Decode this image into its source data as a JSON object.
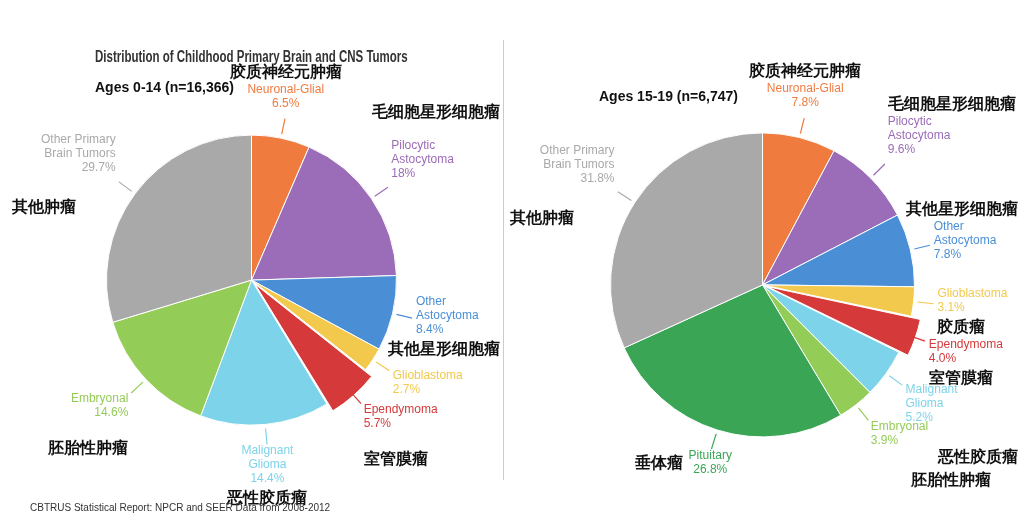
{
  "chart_data": [
    {
      "type": "pie",
      "title": "Distribution of Childhood Primary Brain and CNS Tumors",
      "subtitle": "Ages 0-14 (n=16,366)",
      "categories": [
        "Neuronal-Glial",
        "Pilocytic Astocytoma",
        "Other Astocytoma",
        "Glioblastoma",
        "Ependymoma",
        "Malignant Glioma",
        "Embryonal",
        "Other Primary Brain Tumors"
      ],
      "values": [
        6.5,
        18,
        8.4,
        2.7,
        5.7,
        14.4,
        14.6,
        29.7
      ],
      "value_labels": [
        "6.5%",
        "18%",
        "8.4%",
        "2.7%",
        "5.7%",
        "14.4%",
        "14.6%",
        "29.7%"
      ],
      "colors": [
        "#f07b3f",
        "#9b6cb8",
        "#4a8fd6",
        "#f2c94c",
        "#d6393a",
        "#7dd3ea",
        "#94cc58",
        "#a9a9a9"
      ],
      "annotations": [
        {
          "text": "胶质神经元肿瘤",
          "x": "Neuronal-Glial"
        },
        {
          "text": "毛细胞星形细胞瘤",
          "x": "Pilocytic Astocytoma"
        },
        {
          "text": "其他星形细胞瘤",
          "x": "Other Astocytoma"
        },
        {
          "text": "室管膜瘤",
          "x": "Ependymoma"
        },
        {
          "text": "恶性胶质瘤",
          "x": "Malignant Glioma"
        },
        {
          "text": "胚胎性肿瘤",
          "x": "Embryonal"
        },
        {
          "text": "其他肿瘤",
          "x": "Other Primary Brain Tumors"
        },
        "CBTRUS Statistical Report: NPCR and SEER Data from 2008-2012"
      ],
      "legend": false
    },
    {
      "type": "pie",
      "subtitle": "Ages 15-19 (n=6,747)",
      "categories": [
        "Neuronal-Glial",
        "Pilocytic Astocytoma",
        "Other Astocytoma",
        "Glioblastoma",
        "Ependymoma",
        "Malignant Glioma",
        "Embryonal",
        "Pituitary",
        "Other Primary Brain Tumors"
      ],
      "values": [
        7.8,
        9.6,
        7.8,
        3.1,
        4.0,
        5.2,
        3.9,
        26.8,
        31.8
      ],
      "value_labels": [
        "7.8%",
        "9.6%",
        "7.8%",
        "3.1%",
        "4.0%",
        "5.2%",
        "3.9%",
        "26.8%",
        "31.8%"
      ],
      "colors": [
        "#f07b3f",
        "#9b6cb8",
        "#4a8fd6",
        "#f2c94c",
        "#d6393a",
        "#7dd3ea",
        "#94cc58",
        "#3aa655",
        "#a9a9a9"
      ],
      "annotations": [
        {
          "text": "胶质神经元肿瘤",
          "x": "Neuronal-Glial"
        },
        {
          "text": "毛细胞星形细胞瘤",
          "x": "Pilocytic Astocytoma"
        },
        {
          "text": "其他星形细胞瘤",
          "x": "Other Astocytoma"
        },
        {
          "text": "胶质瘤",
          "x": "Glioblastoma"
        },
        {
          "text": "室管膜瘤",
          "x": "Ependymoma"
        },
        {
          "text": "恶性胶质瘤",
          "x": "Malignant Glioma"
        },
        {
          "text": "胚胎性肿瘤",
          "x": "Embryonal"
        },
        {
          "text": "垂体瘤",
          "x": "Pituitary"
        },
        {
          "text": "其他肿瘤",
          "x": "Other Primary Brain Tumors"
        }
      ],
      "legend": false
    }
  ]
}
